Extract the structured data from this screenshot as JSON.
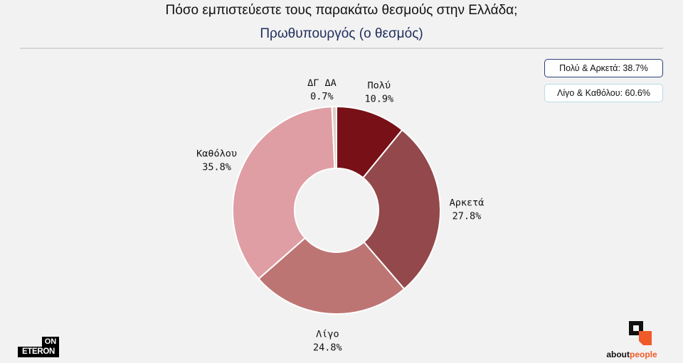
{
  "title": "Πόσο εμπιστεύεστε τους παρακάτω θεσμούς στην Ελλάδα;",
  "subtitle": "Πρωθυπουργός (ο θεσμός)",
  "summary": {
    "positive": "Πολύ & Αρκετά: 38.7%",
    "negative": "Λίγο & Καθόλου: 60.6%",
    "positive_border_color": "#2d3f7a",
    "negative_border_color": "#b9dbe5"
  },
  "chart_data": {
    "type": "pie",
    "variant": "donut",
    "slices": [
      {
        "label": "Πολύ",
        "value": 10.9,
        "display": "10.9%",
        "color": "#771117"
      },
      {
        "label": "Αρκετά",
        "value": 27.8,
        "display": "27.8%",
        "color": "#93484b"
      },
      {
        "label": "Λίγο",
        "value": 24.8,
        "display": "24.8%",
        "color": "#bd7574"
      },
      {
        "label": "Καθόλου",
        "value": 35.8,
        "display": "35.8%",
        "color": "#df9ea4"
      },
      {
        "label": "ΔΓ ΔΑ",
        "value": 0.7,
        "display": "0.7%",
        "color": "#dccfc8"
      }
    ],
    "start": "top, clockwise"
  },
  "logos": {
    "left_top": "ON",
    "left_bottom": "ETERON",
    "right_prefix": "about",
    "right_accent": "people"
  }
}
